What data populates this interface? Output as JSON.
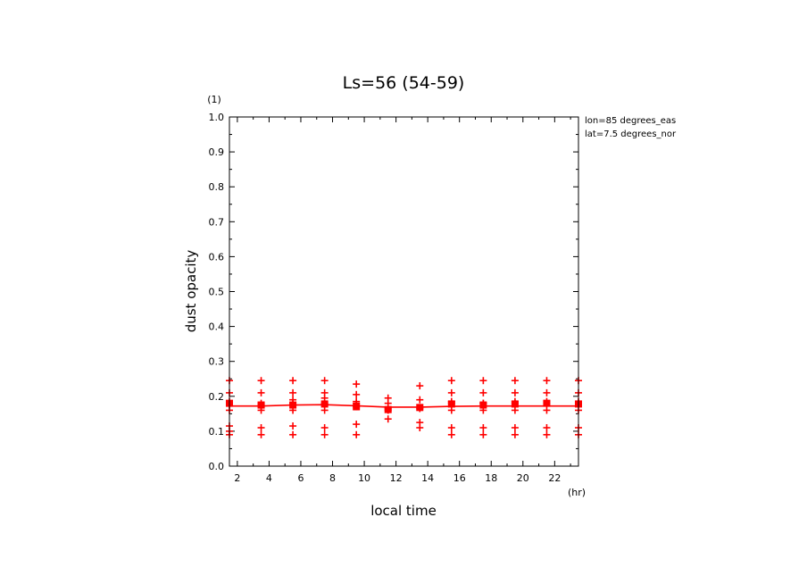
{
  "chart_data": {
    "type": "scatter",
    "title": "Ls=56 (54-59)",
    "xlabel": "local time",
    "ylabel": "dust opacity",
    "x_unit": "(hr)",
    "y_unit": "(1)",
    "annotations": [
      "lon=85 degrees_eas",
      "lat=7.5 degrees_nor"
    ],
    "xlim": [
      1.5,
      23.5
    ],
    "ylim": [
      0.0,
      1.0
    ],
    "xticks": [
      2,
      4,
      6,
      8,
      10,
      12,
      14,
      16,
      18,
      20,
      22
    ],
    "yticks": [
      "0.0",
      "0.1",
      "0.2",
      "0.3",
      "0.4",
      "0.5",
      "0.6",
      "0.7",
      "0.8",
      "0.9",
      "1.0"
    ],
    "colors": {
      "data": "#ff0000",
      "axes": "#000000"
    },
    "series": [
      {
        "marker": "plus",
        "x": [
          1.5,
          1.5,
          1.5,
          1.5,
          1.5,
          1.5,
          1.5,
          1.5,
          3.5,
          3.5,
          3.5,
          3.5,
          3.5,
          3.5,
          3.5,
          3.5,
          5.5,
          5.5,
          5.5,
          5.5,
          5.5,
          5.5,
          5.5,
          5.5,
          7.5,
          7.5,
          7.5,
          7.5,
          7.5,
          7.5,
          7.5,
          7.5,
          9.5,
          9.5,
          9.5,
          9.5,
          9.5,
          9.5,
          9.5,
          11.5,
          11.5,
          11.5,
          11.5,
          11.5,
          13.5,
          13.5,
          13.5,
          13.5,
          13.5,
          15.5,
          15.5,
          15.5,
          15.5,
          15.5,
          15.5,
          15.5,
          17.5,
          17.5,
          17.5,
          17.5,
          17.5,
          17.5,
          17.5,
          19.5,
          19.5,
          19.5,
          19.5,
          19.5,
          19.5,
          19.5,
          21.5,
          21.5,
          21.5,
          21.5,
          21.5,
          21.5,
          21.5,
          23.5,
          23.5,
          23.5,
          23.5,
          23.5,
          23.5,
          23.5
        ],
        "y": [
          0.245,
          0.21,
          0.185,
          0.175,
          0.16,
          0.115,
          0.1,
          0.09,
          0.245,
          0.21,
          0.18,
          0.17,
          0.16,
          0.11,
          0.09,
          0.175,
          0.245,
          0.21,
          0.19,
          0.18,
          0.16,
          0.115,
          0.09,
          0.175,
          0.245,
          0.21,
          0.195,
          0.18,
          0.16,
          0.11,
          0.09,
          0.175,
          0.235,
          0.205,
          0.185,
          0.17,
          0.12,
          0.09,
          0.18,
          0.195,
          0.18,
          0.16,
          0.135,
          0.165,
          0.23,
          0.19,
          0.165,
          0.125,
          0.11,
          0.245,
          0.21,
          0.18,
          0.16,
          0.11,
          0.09,
          0.185,
          0.245,
          0.21,
          0.18,
          0.16,
          0.11,
          0.09,
          0.18,
          0.245,
          0.21,
          0.18,
          0.16,
          0.11,
          0.09,
          0.185,
          0.245,
          0.21,
          0.18,
          0.16,
          0.11,
          0.09,
          0.185,
          0.245,
          0.21,
          0.18,
          0.16,
          0.11,
          0.09,
          0.185
        ]
      },
      {
        "marker": "square",
        "x": [
          1.5,
          3.5,
          5.5,
          7.5,
          9.5,
          11.5,
          13.5,
          15.5,
          17.5,
          19.5,
          21.5,
          23.5
        ],
        "y": [
          0.18,
          0.175,
          0.175,
          0.178,
          0.17,
          0.162,
          0.168,
          0.178,
          0.175,
          0.178,
          0.18,
          0.178
        ]
      },
      {
        "marker": "line",
        "x": [
          1.5,
          3.5,
          5.5,
          7.5,
          9.5,
          11.5,
          13.5,
          15.5,
          17.5,
          19.5,
          21.5,
          23.5
        ],
        "y": [
          0.172,
          0.172,
          0.175,
          0.176,
          0.173,
          0.169,
          0.169,
          0.171,
          0.172,
          0.172,
          0.172,
          0.172
        ]
      }
    ]
  }
}
